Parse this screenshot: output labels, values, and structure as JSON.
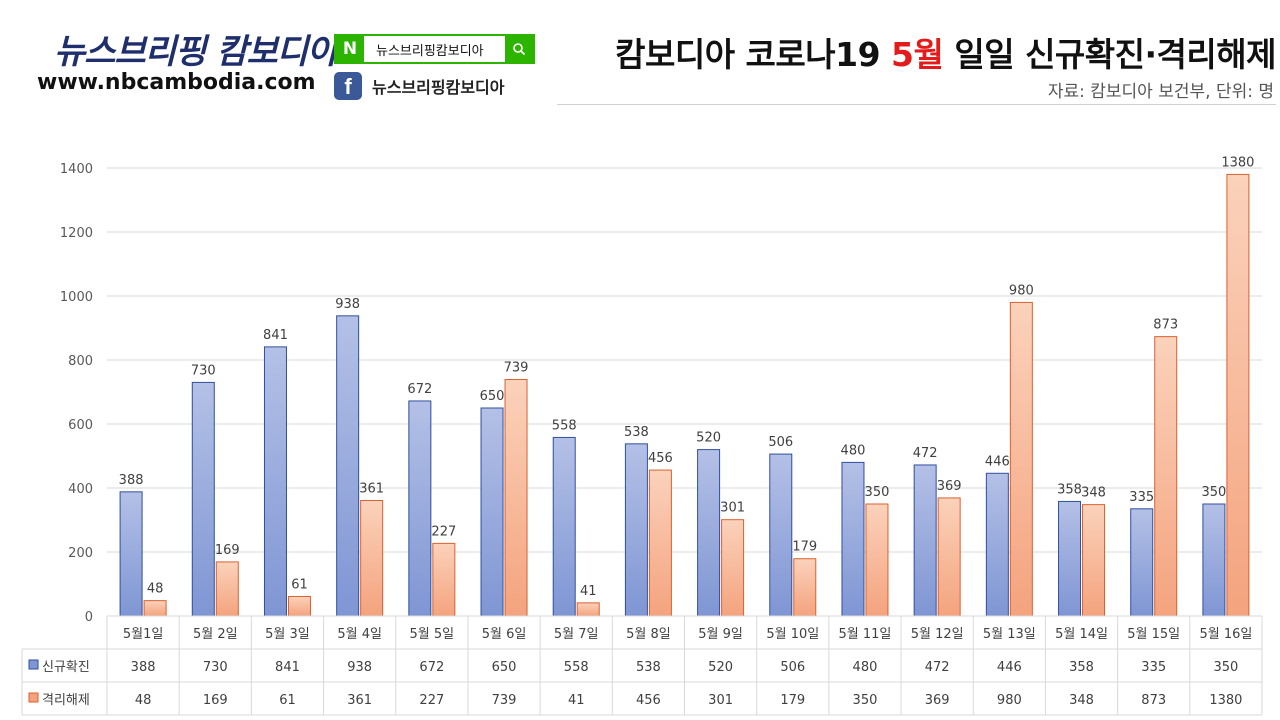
{
  "brand": {
    "name": "뉴스브리핑 캄보디아",
    "url": "www.nbcambodia.com"
  },
  "search": {
    "logo": "N",
    "text": "뉴스브리핑캄보디아",
    "icon": "search-icon"
  },
  "facebook": {
    "icon": "facebook-icon",
    "label": "뉴스브리핑캄보디아"
  },
  "header": {
    "title_pre": "캄보디아 코로나19 ",
    "title_highlight": "5월",
    "title_post": " 일일 신규확진·격리해제",
    "source": "자료: 캄보디아 보건부, 단위: 명"
  },
  "colors": {
    "series1_top": "#b4c0e6",
    "series1_bottom": "#7f96d4",
    "series1_edge": "#2f4f9f",
    "series2_top": "#fbd2bb",
    "series2_bottom": "#f4a37e",
    "series2_edge": "#d9612e",
    "highlight": "#e41b1b"
  },
  "chart_data": {
    "type": "bar",
    "categories": [
      "5월1일",
      "5월 2일",
      "5월 3일",
      "5월 4일",
      "5월 5일",
      "5월 6일",
      "5월 7일",
      "5월 8일",
      "5월 9일",
      "5월 10일",
      "5월 11일",
      "5월 12일",
      "5월 13일",
      "5월 14일",
      "5월 15일",
      "5월 16일"
    ],
    "series": [
      {
        "name": "신규확진",
        "values": [
          388,
          730,
          841,
          938,
          672,
          650,
          558,
          538,
          520,
          506,
          480,
          472,
          446,
          358,
          335,
          350
        ]
      },
      {
        "name": "격리해제",
        "values": [
          48,
          169,
          61,
          361,
          227,
          739,
          41,
          456,
          301,
          179,
          350,
          369,
          980,
          348,
          873,
          1380
        ]
      }
    ],
    "ylim": [
      0,
      1400
    ],
    "yticks": [
      0,
      200,
      400,
      600,
      800,
      1000,
      1200,
      1400
    ],
    "grid": true,
    "legend": "data-table-bottom"
  }
}
